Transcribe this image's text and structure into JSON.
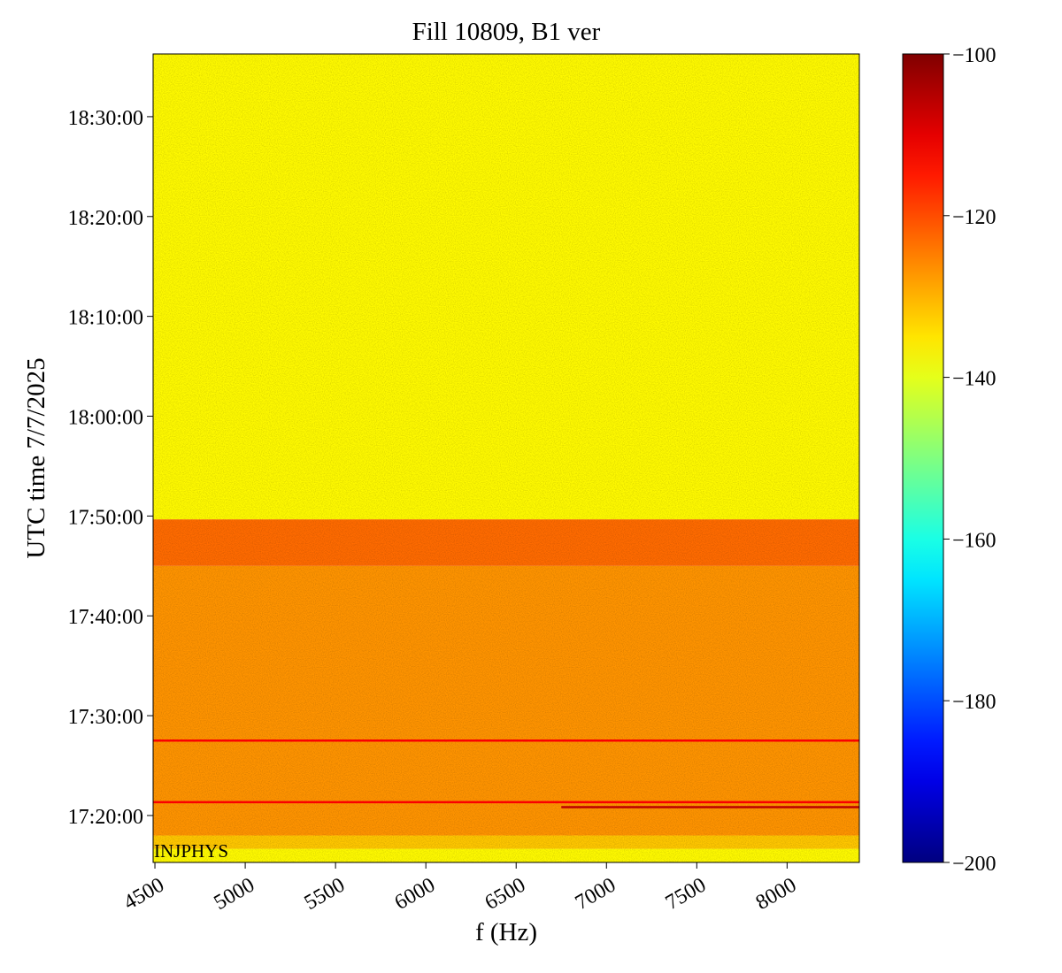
{
  "chart_data": {
    "type": "heatmap",
    "title": "Fill 10809, B1 ver",
    "xlabel": "f (Hz)",
    "ylabel": "UTC time 7/7/2025",
    "annotation": "INJPHYS",
    "xlim": [
      4490,
      8400
    ],
    "xticks": [
      4500,
      5000,
      5500,
      6000,
      6500,
      7000,
      7500,
      8000
    ],
    "ylim": [
      "17:15:18",
      "18:36:17"
    ],
    "yticks": [
      "17:20:00",
      "17:30:00",
      "17:40:00",
      "17:50:00",
      "18:00:00",
      "18:10:00",
      "18:20:00",
      "18:30:00"
    ],
    "colormap": "jet",
    "clim": [
      -200,
      -100
    ],
    "cticks": [
      {
        "value": -100,
        "label": "−100"
      },
      {
        "value": -120,
        "label": "−120"
      },
      {
        "value": -140,
        "label": "−140"
      },
      {
        "value": -160,
        "label": "−160"
      },
      {
        "value": -180,
        "label": "−180"
      },
      {
        "value": -200,
        "label": "−200"
      }
    ],
    "bands": [
      {
        "start": "17:15:18",
        "end": "17:16:40",
        "value": -137
      },
      {
        "start": "17:16:40",
        "end": "17:18:00",
        "value": -132
      },
      {
        "start": "17:18:00",
        "end": "17:45:00",
        "value": -127
      },
      {
        "start": "17:45:00",
        "end": "17:49:40",
        "value": -123
      },
      {
        "start": "17:49:40",
        "end": "18:36:17",
        "value": -137
      }
    ],
    "lines": [
      {
        "time": "17:27:30",
        "fstart": 4490,
        "fend": 8400,
        "value": -112
      },
      {
        "time": "17:21:20",
        "fstart": 4490,
        "fend": 8400,
        "value": -112
      },
      {
        "time": "17:20:50",
        "fstart": 6750,
        "fend": 8400,
        "value": -106
      }
    ]
  }
}
